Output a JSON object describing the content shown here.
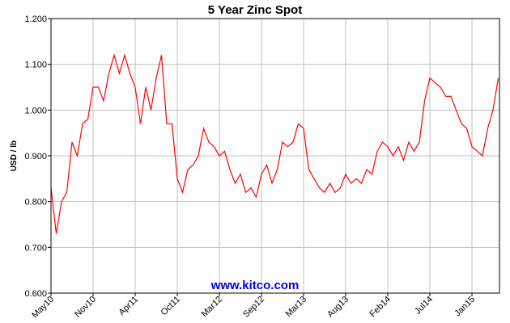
{
  "chart_data": {
    "type": "line",
    "title": "5 Year Zinc Spot",
    "ylabel": "USD / lb",
    "watermark": "www.kitco.com",
    "categories": [
      "May10",
      null,
      null,
      null,
      null,
      null,
      null,
      null,
      "Nov10",
      null,
      null,
      null,
      null,
      null,
      null,
      null,
      "Apr11",
      null,
      null,
      null,
      null,
      null,
      null,
      null,
      "Oct11",
      null,
      null,
      null,
      null,
      null,
      null,
      null,
      "Mar12",
      null,
      null,
      null,
      null,
      null,
      null,
      null,
      "Sep12",
      null,
      null,
      null,
      null,
      null,
      null,
      null,
      "Mar13",
      null,
      null,
      null,
      null,
      null,
      null,
      null,
      "Aug13",
      null,
      null,
      null,
      null,
      null,
      null,
      null,
      "Feb14",
      null,
      null,
      null,
      null,
      null,
      null,
      null,
      "Jul14",
      null,
      null,
      null,
      null,
      null,
      null,
      null,
      "Jan15",
      null,
      null,
      null,
      null,
      null
    ],
    "series": [
      {
        "name": "Zinc",
        "color": "#ff0000",
        "values": [
          0.83,
          0.73,
          0.8,
          0.82,
          0.93,
          0.9,
          0.97,
          0.98,
          1.05,
          1.05,
          1.02,
          1.08,
          1.12,
          1.08,
          1.12,
          1.08,
          1.05,
          0.97,
          1.05,
          1.0,
          1.07,
          1.12,
          0.97,
          0.97,
          0.85,
          0.82,
          0.87,
          0.88,
          0.9,
          0.96,
          0.93,
          0.92,
          0.9,
          0.91,
          0.87,
          0.84,
          0.86,
          0.82,
          0.83,
          0.81,
          0.86,
          0.88,
          0.84,
          0.87,
          0.93,
          0.92,
          0.93,
          0.97,
          0.96,
          0.87,
          0.85,
          0.83,
          0.82,
          0.84,
          0.82,
          0.83,
          0.86,
          0.84,
          0.85,
          0.84,
          0.87,
          0.86,
          0.91,
          0.93,
          0.92,
          0.9,
          0.92,
          0.89,
          0.93,
          0.91,
          0.93,
          1.02,
          1.07,
          1.06,
          1.05,
          1.03,
          1.03,
          1.0,
          0.97,
          0.96,
          0.92,
          0.91,
          0.9,
          0.96,
          1.0,
          1.07
        ]
      }
    ],
    "ylim": [
      0.6,
      1.2
    ],
    "yticks": [
      {
        "value": 0.6,
        "label": "0.600"
      },
      {
        "value": 0.7,
        "label": "0.700"
      },
      {
        "value": 0.8,
        "label": "0.800"
      },
      {
        "value": 0.9,
        "label": "0.900"
      },
      {
        "value": 1.0,
        "label": "1.000"
      },
      {
        "value": 1.1,
        "label": "1.100"
      },
      {
        "value": 1.2,
        "label": "1.200"
      }
    ],
    "grid": true
  }
}
